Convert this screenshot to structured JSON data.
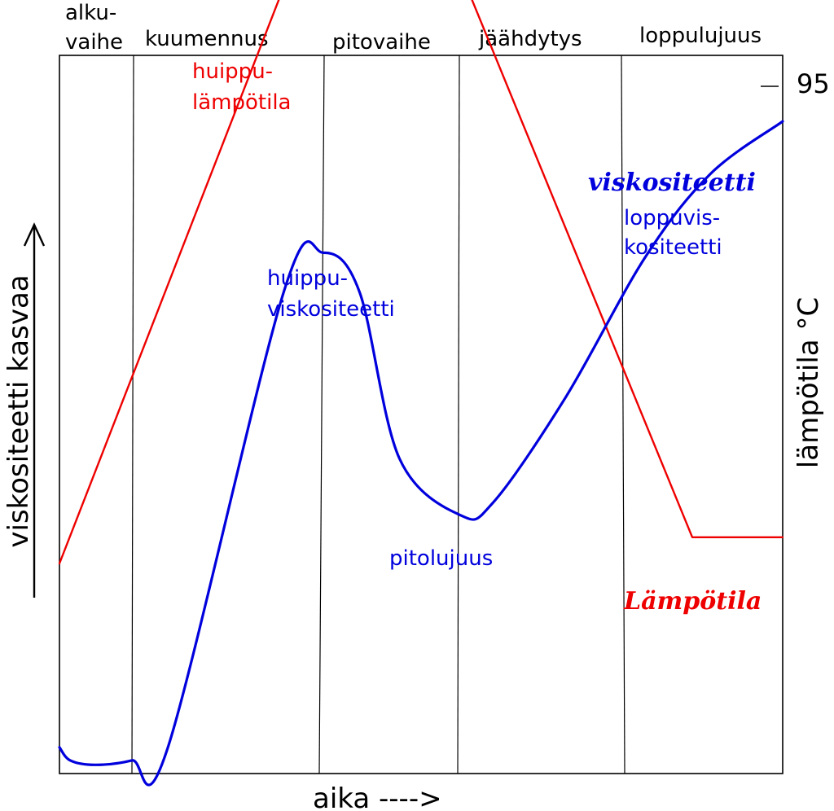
{
  "chart_data": {
    "type": "line",
    "xlabel": "aika ---->",
    "ylabel": "viskositeetti kasvaa",
    "y2label": "lämpötila °C",
    "y2_ticks": [
      {
        "value": 95,
        "label": "95"
      }
    ],
    "grid": false,
    "phases": [
      {
        "lines": [
          "alku-",
          "vaihe"
        ]
      },
      {
        "lines": [
          "kuumennus"
        ]
      },
      {
        "lines": [
          "pitovaihe"
        ]
      },
      {
        "lines": [
          "jäähdytys"
        ]
      },
      {
        "lines": [
          "loppulujuus"
        ]
      }
    ],
    "colors": {
      "viscosity": "#0000dd",
      "temperature": "#ee0000",
      "frame": "#000000"
    },
    "series": [
      {
        "key": "temperature",
        "name": "Lämpötila",
        "color": "#ee0000",
        "points": [
          [
            0,
            2.4
          ],
          [
            32.5,
            9.3
          ],
          [
            55,
            9.25
          ],
          [
            87.5,
            2.7
          ],
          [
            100,
            2.7
          ]
        ]
      },
      {
        "key": "viscosity",
        "name": "viskositeetti",
        "color": "#0000dd",
        "points": [
          [
            0,
            0.3
          ],
          [
            1.5,
            0.15
          ],
          [
            5,
            0.1
          ],
          [
            10,
            0.15
          ],
          [
            15,
            0.3
          ],
          [
            31,
            5.5
          ],
          [
            36.5,
            5.95
          ],
          [
            41.5,
            5.5
          ],
          [
            47,
            3.6
          ],
          [
            55.5,
            2.95
          ],
          [
            60,
            3.1
          ],
          [
            70,
            4.3
          ],
          [
            81,
            5.9
          ],
          [
            90,
            6.85
          ],
          [
            100,
            7.45
          ]
        ]
      }
    ],
    "annotations": [
      {
        "series": "temperature",
        "lines": [
          "huippu-",
          "lämpötila"
        ]
      },
      {
        "series": "viscosity",
        "lines": [
          "huippu-",
          "viskositeetti"
        ]
      },
      {
        "series": "viscosity",
        "lines": [
          "pitolujuus"
        ]
      },
      {
        "series": "viscosity",
        "lines": [
          "loppuvis-",
          "kositeetti"
        ]
      }
    ]
  }
}
